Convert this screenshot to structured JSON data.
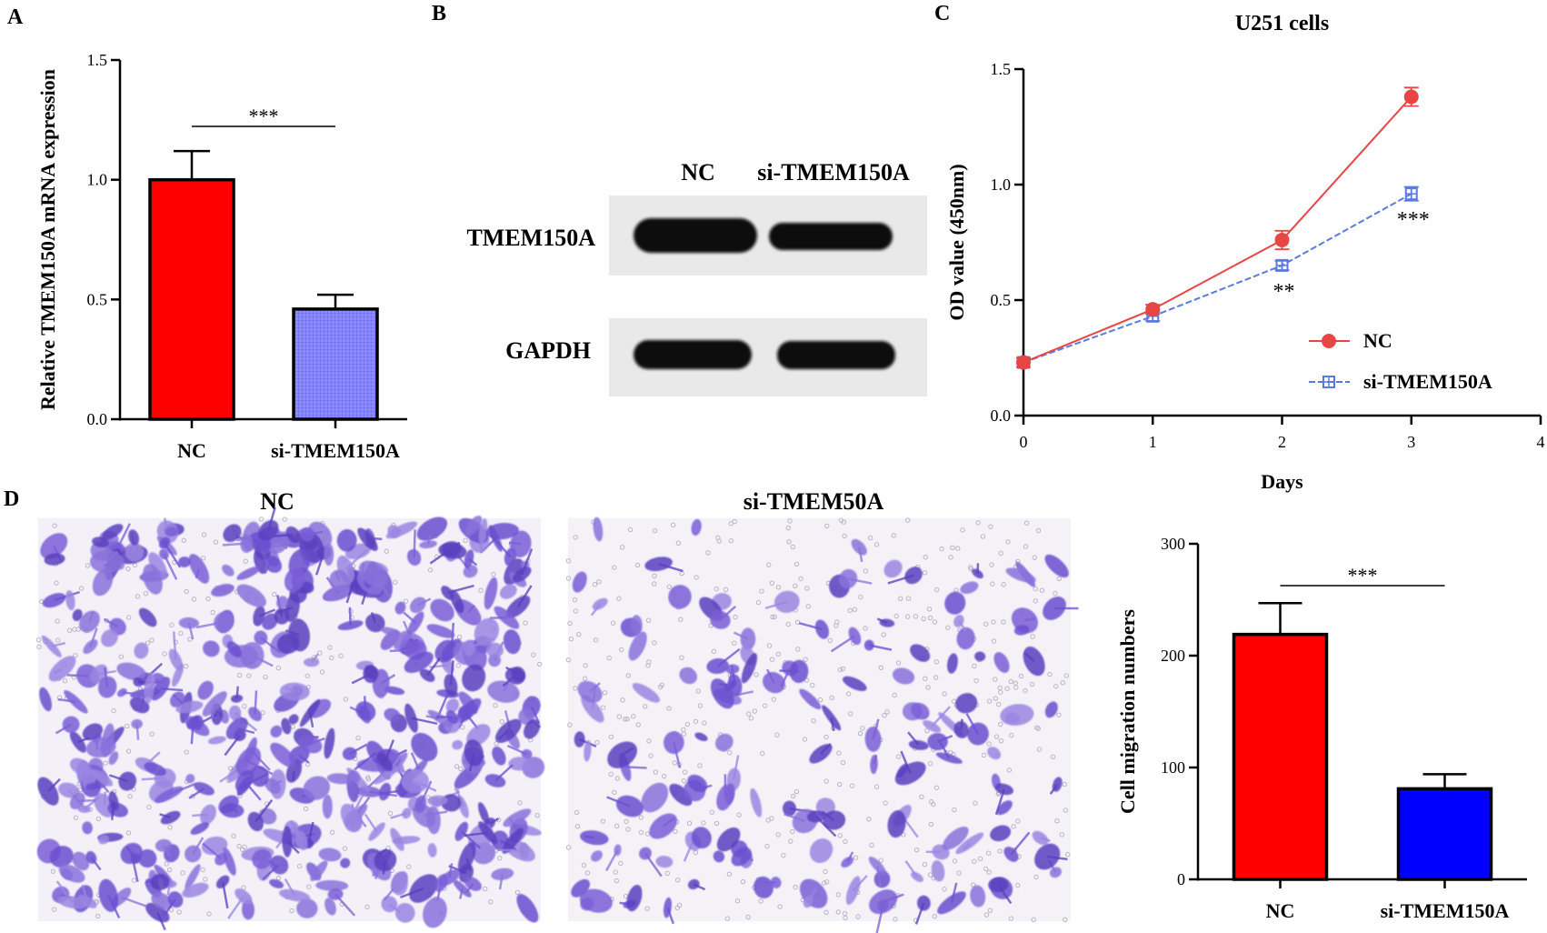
{
  "panels": {
    "A": "A",
    "B": "B",
    "C": "C",
    "D": "D"
  },
  "panel_b": {
    "lanes": [
      "NC",
      "si-TMEM150A"
    ],
    "blot_labels": [
      "TMEM150A",
      "GAPDH"
    ]
  },
  "panel_d": {
    "image_labels": [
      "NC",
      "si-TMEM50A"
    ]
  },
  "chart_data": [
    {
      "id": "A",
      "type": "bar",
      "title": "",
      "xlabel": "",
      "ylabel": "Relative TMEM150A mRNA  expression",
      "categories": [
        "NC",
        "si-TMEM150A"
      ],
      "values": [
        1.0,
        0.46
      ],
      "errors": [
        0.12,
        0.06
      ],
      "colors": [
        "#ff0000",
        "#8080ff"
      ],
      "ylim": [
        0,
        1.5
      ],
      "yticks": [
        "0.0",
        "0.5",
        "1.0",
        "1.5"
      ],
      "significance": "***"
    },
    {
      "id": "C",
      "type": "line",
      "title": "U251 cells",
      "xlabel": "Days",
      "ylabel": "OD value (450nm)",
      "x": [
        0,
        1,
        2,
        3
      ],
      "xlim": [
        0,
        4
      ],
      "xticks": [
        "0",
        "1",
        "2",
        "3",
        "4"
      ],
      "ylim": [
        0,
        1.5
      ],
      "yticks": [
        "0.0",
        "0.5",
        "1.0",
        "1.5"
      ],
      "legend_position": "right",
      "series": [
        {
          "name": "NC",
          "values": [
            0.23,
            0.46,
            0.76,
            1.38
          ],
          "errors": [
            0.02,
            0.02,
            0.04,
            0.04
          ],
          "color": "#e84545",
          "marker": "circle"
        },
        {
          "name": "si-TMEM150A",
          "values": [
            0.23,
            0.43,
            0.65,
            0.96
          ],
          "errors": [
            0.02,
            0.02,
            0.02,
            0.03
          ],
          "color": "#5a7ae0",
          "marker": "square"
        }
      ],
      "annotations": [
        {
          "x": 2,
          "text": "**"
        },
        {
          "x": 3,
          "text": "***"
        }
      ]
    },
    {
      "id": "D",
      "type": "bar",
      "title": "",
      "xlabel": "",
      "ylabel": "Cell migration numbers",
      "categories": [
        "NC",
        "si-TMEM150A"
      ],
      "values": [
        219,
        81
      ],
      "errors": [
        28,
        13
      ],
      "colors": [
        "#ff0000",
        "#0000ff"
      ],
      "ylim": [
        0,
        300
      ],
      "yticks": [
        "0",
        "100",
        "200",
        "300"
      ],
      "significance": "***"
    }
  ]
}
